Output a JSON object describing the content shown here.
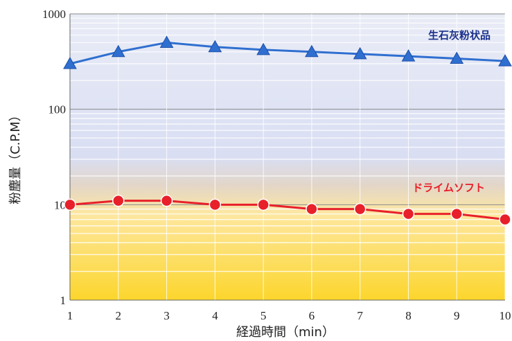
{
  "chart_data": {
    "type": "line",
    "x_ticks": [
      1,
      2,
      3,
      4,
      5,
      6,
      7,
      8,
      9,
      10
    ],
    "y_scale": "log",
    "ylim": [
      1,
      1000
    ],
    "y_ticks": [
      "1",
      "10",
      "100",
      "1000"
    ],
    "xlabel": "経過時間（min）",
    "ylabel": "粉塵量（C.P.M）",
    "grid": true,
    "series": [
      {
        "name": "生石灰粉状品",
        "color": "#2f6fd0",
        "label_color": "#1a2f8a",
        "marker": "triangle",
        "x": [
          1,
          2,
          3,
          4,
          5,
          6,
          7,
          8,
          9,
          10
        ],
        "y": [
          300,
          400,
          500,
          450,
          420,
          400,
          380,
          360,
          340,
          320
        ]
      },
      {
        "name": "ドライムソフト",
        "color": "#e8202a",
        "label_color": "#e8202a",
        "marker": "circle",
        "x": [
          1,
          2,
          3,
          4,
          5,
          6,
          7,
          8,
          9,
          10
        ],
        "y": [
          10,
          11,
          11,
          10,
          10,
          9,
          9,
          8,
          8,
          7
        ]
      }
    ]
  }
}
